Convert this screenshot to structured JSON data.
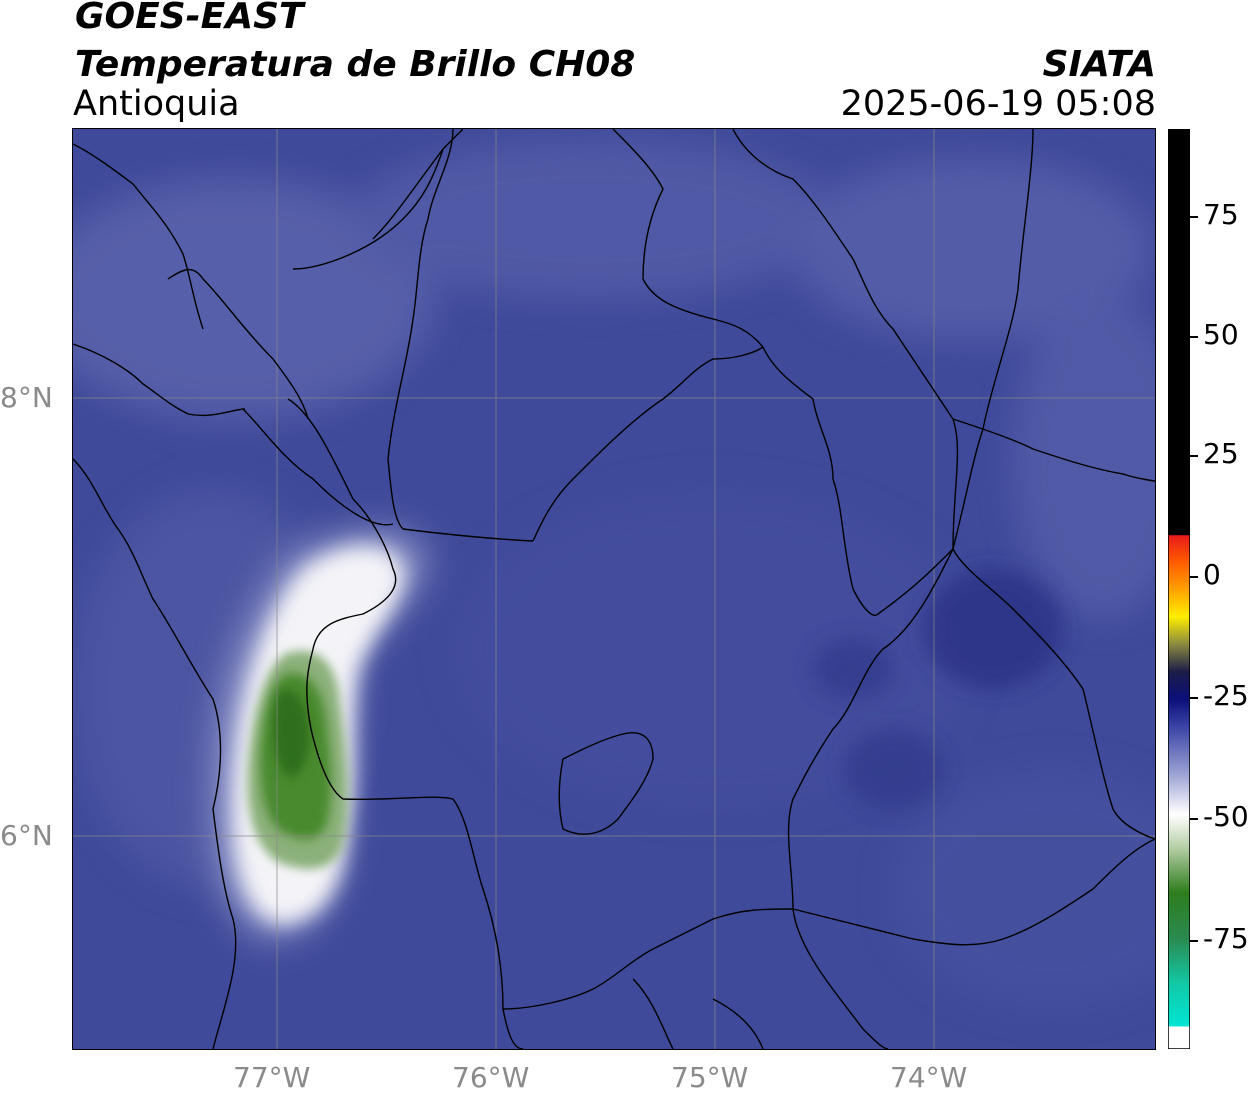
{
  "header": {
    "title_line1": "GOES-EAST",
    "title_line2": "Temperatura de Brillo CH08",
    "region": "Antioquia",
    "source": "SIATA",
    "timestamp": "2025-06-19 05:08"
  },
  "map": {
    "lat_labels": [
      "8°N",
      "6°N"
    ],
    "lon_labels": [
      "77°W",
      "76°W",
      "75°W",
      "74°W"
    ],
    "background_color": "#3f4a9a",
    "gridline_color": "#888888",
    "border_color": "#000000"
  },
  "colorbar": {
    "tick_labels": [
      "75",
      "50",
      "25",
      "0",
      "-25",
      "-50",
      "-75"
    ],
    "colors": {
      "top_black": "#000000",
      "warm_red": "#ff1a00",
      "orange": "#ff9900",
      "yellow": "#ffee00",
      "dark": "#222244",
      "navy": "#0b0f7a",
      "blue": "#3b45a6",
      "white": "#ffffff",
      "green": "#2e7d1e",
      "teal": "#00e5d4"
    }
  }
}
